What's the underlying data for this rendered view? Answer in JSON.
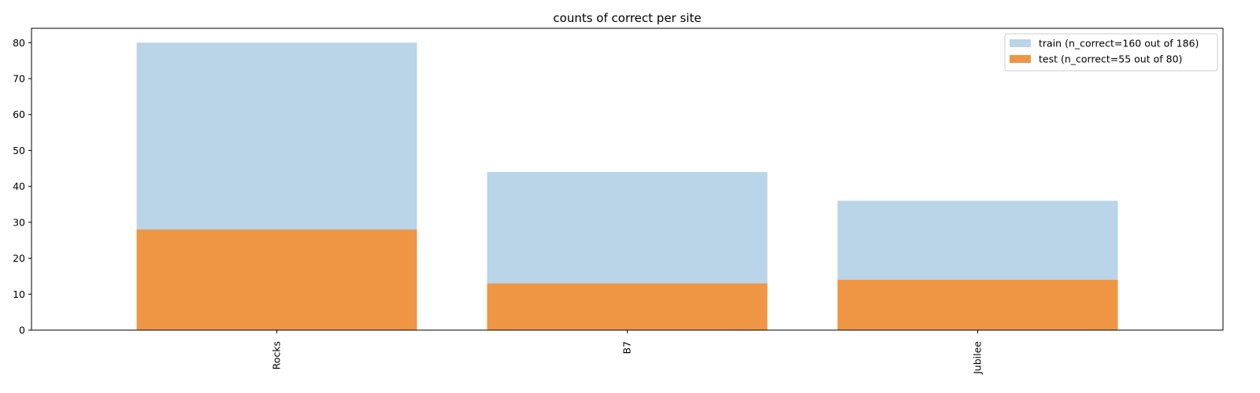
{
  "chart_data": {
    "type": "bar",
    "title": "counts of correct per site",
    "xlabel": "",
    "ylabel": "",
    "categories": [
      "Rocks",
      "B7",
      "Jubilee"
    ],
    "ylim": [
      0,
      84
    ],
    "yticks": [
      0,
      10,
      20,
      30,
      40,
      50,
      60,
      70,
      80
    ],
    "grid": false,
    "legend_position": "top-right",
    "overlay": true,
    "series": [
      {
        "name": "train (n_correct=160 out of 186)",
        "values": [
          80,
          44,
          36
        ],
        "color": "#b9d5e7"
      },
      {
        "name": "test (n_correct=55 out of 80)",
        "values": [
          28,
          13,
          14
        ],
        "color": "#ef9645"
      }
    ]
  }
}
